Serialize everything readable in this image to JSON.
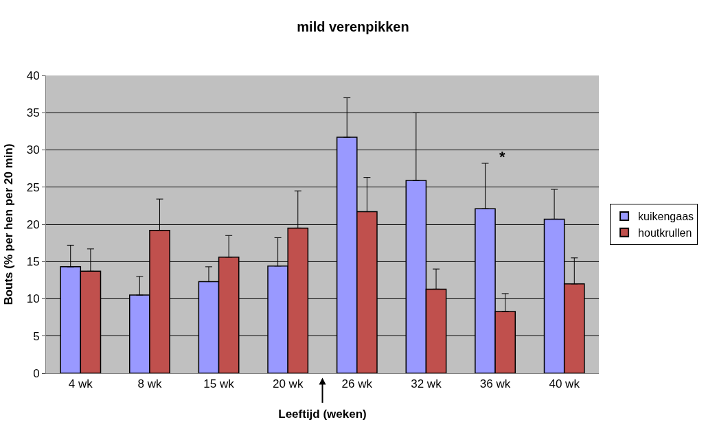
{
  "chart_data": {
    "type": "bar",
    "title": "mild verenpikken",
    "xlabel": "Leeftijd (weken)",
    "ylabel": "Bouts (% per hen per 20 min)",
    "categories": [
      "4 wk",
      "8 wk",
      "15 wk",
      "20 wk",
      "26 wk",
      "32 wk",
      "36 wk",
      "40 wk"
    ],
    "series": [
      {
        "name": "kuikengaas",
        "color": "#9999ff",
        "values": [
          14.3,
          10.5,
          12.3,
          14.4,
          31.7,
          25.9,
          22.1,
          20.7
        ],
        "errors": [
          [
            14.3,
            17.2
          ],
          [
            10.5,
            13.0
          ],
          [
            12.3,
            14.3
          ],
          [
            14.4,
            18.2
          ],
          [
            31.7,
            37.0
          ],
          [
            25.9,
            35.0
          ],
          [
            22.1,
            28.2
          ],
          [
            20.7,
            24.7
          ]
        ]
      },
      {
        "name": "houtkrullen",
        "color": "#c0504d",
        "values": [
          13.7,
          19.2,
          15.6,
          19.5,
          21.7,
          11.3,
          8.3,
          12.0
        ],
        "errors": [
          [
            13.7,
            16.7
          ],
          [
            19.2,
            23.4
          ],
          [
            15.6,
            18.5
          ],
          [
            19.5,
            24.5
          ],
          [
            21.7,
            26.3
          ],
          [
            11.3,
            14.0
          ],
          [
            8.3,
            10.7
          ],
          [
            12.0,
            15.5
          ]
        ]
      }
    ],
    "annotations": [
      "*"
    ],
    "ylim": [
      0,
      40
    ],
    "yticks": [
      0,
      5,
      10,
      15,
      20,
      25,
      30,
      35,
      40
    ],
    "grid": "y",
    "legend": "right"
  }
}
